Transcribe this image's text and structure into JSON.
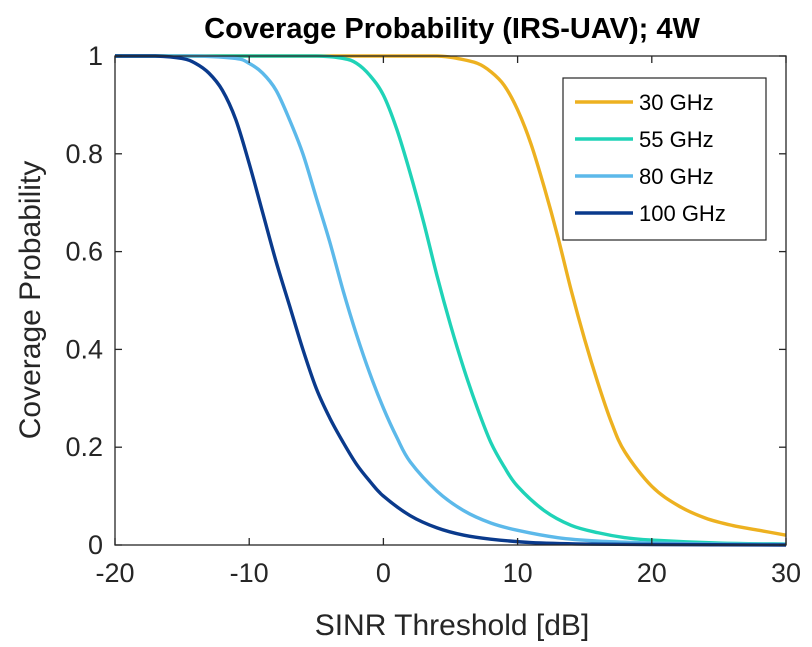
{
  "chart_data": {
    "type": "line",
    "title": "Coverage Probability (IRS-UAV); 4W",
    "xlabel": "SINR Threshold [dB]",
    "ylabel": "Coverage Probability",
    "xlim": [
      -20,
      30
    ],
    "ylim": [
      0,
      1
    ],
    "xticks": [
      -20,
      -10,
      0,
      10,
      20,
      30
    ],
    "xtick_labels": [
      "-20",
      "-10",
      "0",
      "10",
      "20",
      "30"
    ],
    "yticks": [
      0,
      0.2,
      0.4,
      0.6,
      0.8,
      1
    ],
    "ytick_labels": [
      "0",
      "0.2",
      "0.4",
      "0.6",
      "0.8",
      "1"
    ],
    "grid": false,
    "legend_position": "top-right",
    "series": [
      {
        "name": "30 GHz",
        "color": "#EDB120",
        "x": [
          -20,
          -4,
          0,
          4,
          5.5,
          7,
          8,
          9,
          10,
          11,
          12,
          13,
          14,
          15,
          16,
          17,
          18,
          20,
          22,
          24,
          26,
          28,
          30
        ],
        "y": [
          1.0,
          1.0,
          1.0,
          1.0,
          0.995,
          0.985,
          0.968,
          0.94,
          0.89,
          0.82,
          0.73,
          0.63,
          0.52,
          0.42,
          0.33,
          0.25,
          0.19,
          0.12,
          0.08,
          0.055,
          0.04,
          0.03,
          0.02
        ]
      },
      {
        "name": "55 GHz",
        "color": "#1FD3B7",
        "x": [
          -20,
          -10,
          -5,
          -3,
          -2,
          -1,
          0,
          1,
          2,
          3,
          4,
          5,
          6,
          7,
          8,
          9,
          10,
          12,
          14,
          16,
          18,
          20,
          25,
          30
        ],
        "y": [
          1.0,
          1.0,
          1.0,
          0.995,
          0.985,
          0.96,
          0.92,
          0.85,
          0.76,
          0.66,
          0.55,
          0.45,
          0.36,
          0.28,
          0.21,
          0.16,
          0.12,
          0.07,
          0.04,
          0.025,
          0.015,
          0.01,
          0.004,
          0.002
        ]
      },
      {
        "name": "80 GHz",
        "color": "#5CB9EA",
        "x": [
          -20,
          -14,
          -11,
          -10,
          -9,
          -8,
          -7,
          -6,
          -5,
          -4,
          -3,
          -2,
          -1,
          0,
          1,
          2,
          4,
          6,
          8,
          10,
          13,
          16,
          20,
          25,
          30
        ],
        "y": [
          1.0,
          1.0,
          0.995,
          0.985,
          0.965,
          0.93,
          0.87,
          0.8,
          0.71,
          0.62,
          0.52,
          0.43,
          0.35,
          0.28,
          0.22,
          0.17,
          0.11,
          0.07,
          0.045,
          0.03,
          0.015,
          0.008,
          0.004,
          0.002,
          0.001
        ]
      },
      {
        "name": "100 GHz",
        "color": "#0A3A8C",
        "x": [
          -20,
          -17,
          -15,
          -14,
          -13,
          -12,
          -11,
          -10,
          -9,
          -8,
          -7,
          -6,
          -5,
          -4,
          -3,
          -2,
          -1,
          0,
          2,
          4,
          6,
          8,
          11,
          15,
          20,
          30
        ],
        "y": [
          1.0,
          1.0,
          0.995,
          0.985,
          0.965,
          0.93,
          0.87,
          0.78,
          0.68,
          0.58,
          0.49,
          0.4,
          0.32,
          0.26,
          0.21,
          0.165,
          0.13,
          0.1,
          0.06,
          0.035,
          0.02,
          0.012,
          0.005,
          0.002,
          0.001,
          0.0
        ]
      }
    ]
  }
}
